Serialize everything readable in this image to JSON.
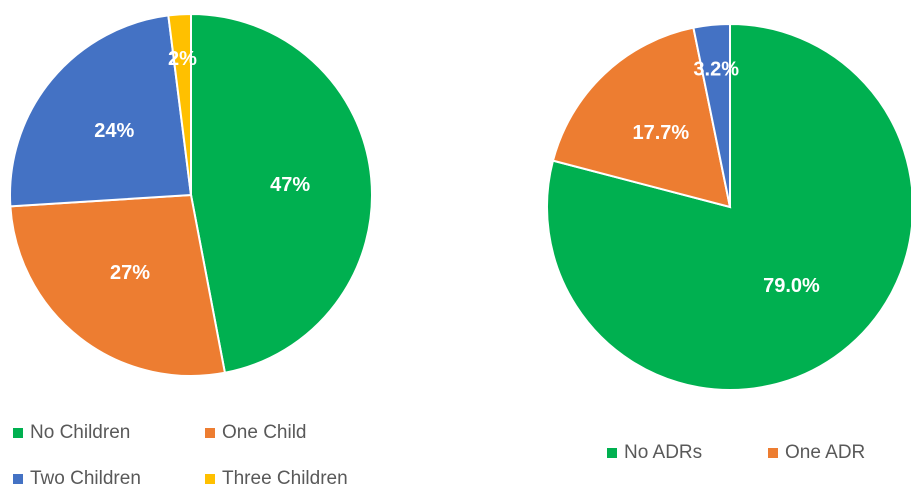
{
  "chart_data": [
    {
      "type": "pie",
      "categories": [
        "No Children",
        "One Child",
        "Two Children",
        "Three Children"
      ],
      "values": [
        47,
        27,
        24,
        2
      ],
      "value_labels": [
        "47%",
        "27%",
        "24%",
        "2%"
      ],
      "colors": [
        "#00b050",
        "#ed7d31",
        "#4472c4",
        "#ffc000"
      ]
    },
    {
      "type": "pie",
      "categories": [
        "No ADRs",
        "One ADR",
        null
      ],
      "values": [
        79.0,
        17.7,
        3.2
      ],
      "value_labels": [
        "79.0%",
        "17.7%",
        "3.2%"
      ],
      "colors": [
        "#00b050",
        "#ed7d31",
        "#4472c4"
      ]
    }
  ]
}
